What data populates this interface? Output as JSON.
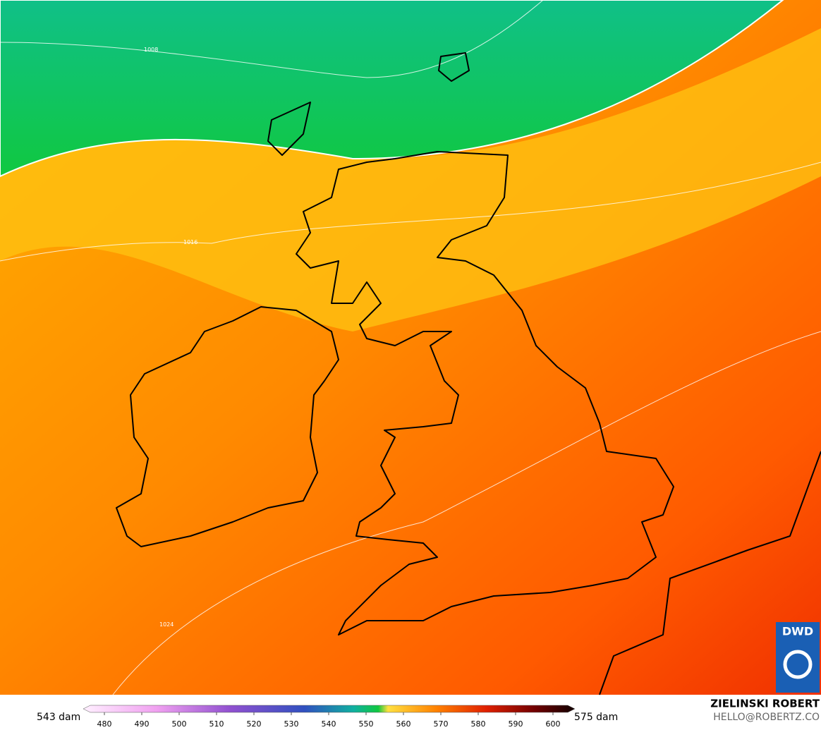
{
  "isobars": [
    {
      "label": "1008"
    },
    {
      "label": "1016"
    },
    {
      "label": "1024"
    }
  ],
  "colorbar": {
    "min_label": "543 dam",
    "max_label": "575 dam",
    "ticks": [
      480,
      490,
      500,
      510,
      520,
      530,
      540,
      550,
      560,
      570,
      580,
      590,
      600
    ]
  },
  "logo": "DWD",
  "credit": {
    "name": "ZIELINSKI ROBERT",
    "email": "HELLO@ROBERTZ.CO"
  }
}
